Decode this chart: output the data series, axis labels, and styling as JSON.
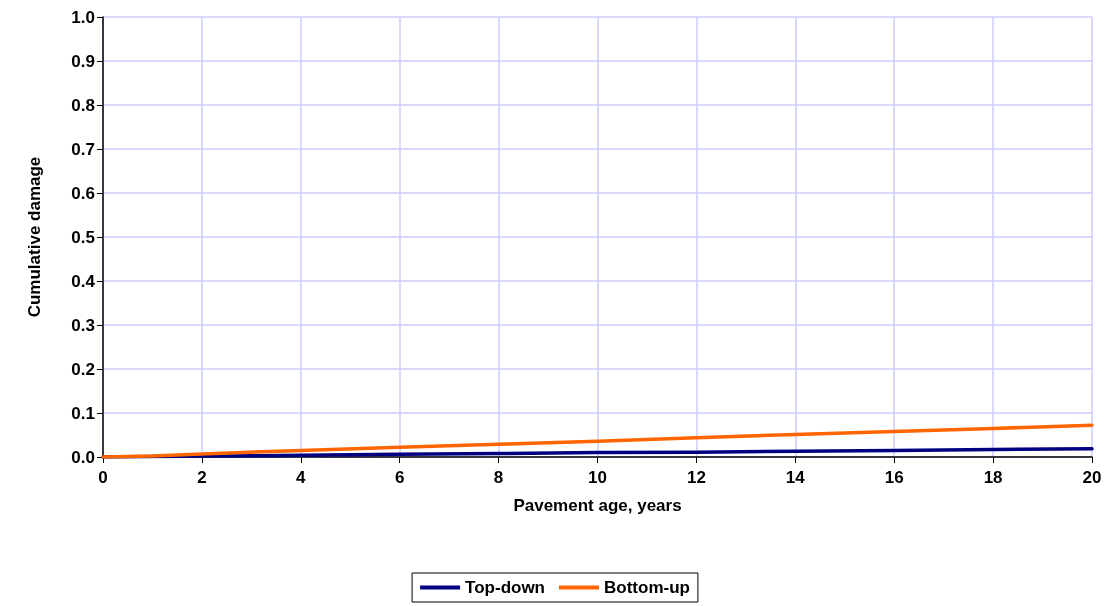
{
  "chart_data": {
    "type": "line",
    "xlabel": "Pavement age, years",
    "ylabel": "Cumulative damage",
    "xlim": [
      0,
      20
    ],
    "xticks": [
      0,
      2,
      4,
      6,
      8,
      10,
      12,
      14,
      16,
      18,
      20
    ],
    "ylim": [
      0,
      1
    ],
    "yticks": [
      {
        "value": 0,
        "label": "0.0"
      },
      0.1,
      0.2,
      0.3,
      0.4,
      0.5,
      0.6,
      0.7,
      0.8,
      0.9,
      {
        "value": 1,
        "label": "1.0"
      }
    ],
    "grid": true,
    "legend": "bottom",
    "marker": "none",
    "line_style": "solid",
    "series": [
      {
        "name": "Top-down",
        "color": "#000080",
        "x": [
          0,
          2,
          4,
          6,
          8,
          10,
          12,
          14,
          16,
          18,
          20
        ],
        "values": [
          0,
          0.002,
          0.004,
          0.006,
          0.008,
          0.01,
          0.011,
          0.013,
          0.015,
          0.017,
          0.019
        ]
      },
      {
        "name": "Bottom-up",
        "color": "#ff6600",
        "x": [
          0,
          1,
          2,
          4,
          6,
          8,
          10,
          12,
          14,
          16,
          18,
          20
        ],
        "values": [
          0,
          0.002,
          0.007,
          0.015,
          0.022,
          0.029,
          0.036,
          0.044,
          0.051,
          0.058,
          0.065,
          0.072
        ]
      }
    ]
  }
}
